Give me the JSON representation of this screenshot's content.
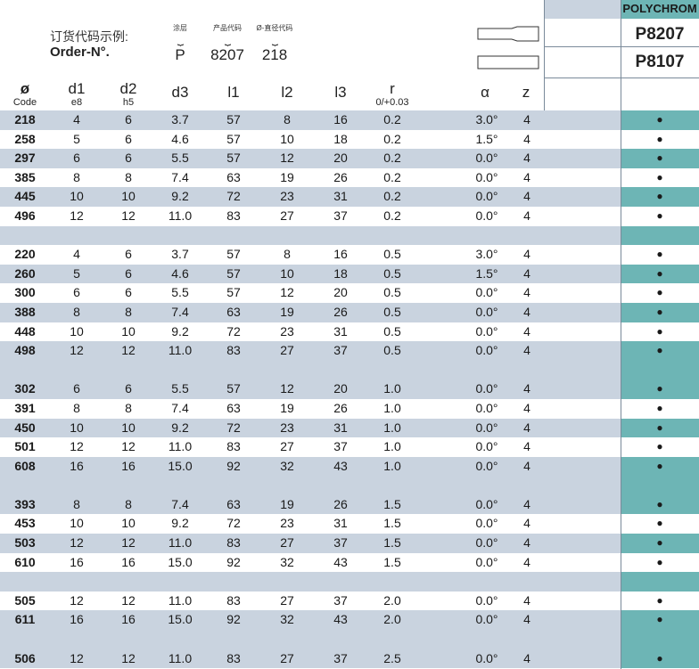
{
  "header": {
    "order_example_cn": "订货代码示例:",
    "order_example_en": "Order-N°.",
    "parts": [
      {
        "label": "涂层",
        "value": "P"
      },
      {
        "label": "产品代码",
        "value": "8207"
      },
      {
        "label": "Ø-直径代码",
        "value": "218"
      }
    ],
    "coating_title": "POLYCHROM",
    "product_codes": [
      "P8207",
      "P8107"
    ]
  },
  "columns": {
    "code": {
      "main": "ø",
      "sub": "Code"
    },
    "d1": {
      "main": "d1",
      "sub": "e8"
    },
    "d2": {
      "main": "d2",
      "sub": "h5"
    },
    "d3": {
      "main": "d3",
      "sub": ""
    },
    "l1": {
      "main": "l1",
      "sub": ""
    },
    "l2": {
      "main": "l2",
      "sub": ""
    },
    "l3": {
      "main": "l3",
      "sub": ""
    },
    "r": {
      "main": "r",
      "sub": "0/+0.03"
    },
    "alpha": {
      "main": "α",
      "sub": ""
    },
    "z": {
      "main": "z",
      "sub": ""
    }
  },
  "rows": [
    {
      "code": "218",
      "d1": "4",
      "d2": "6",
      "d3": "3.7",
      "l1": "57",
      "l2": "8",
      "l3": "16",
      "r": "0.2",
      "alpha": "3.0°",
      "z": "4",
      "p": "●"
    },
    {
      "code": "258",
      "d1": "5",
      "d2": "6",
      "d3": "4.6",
      "l1": "57",
      "l2": "10",
      "l3": "18",
      "r": "0.2",
      "alpha": "1.5°",
      "z": "4",
      "p": "●"
    },
    {
      "code": "297",
      "d1": "6",
      "d2": "6",
      "d3": "5.5",
      "l1": "57",
      "l2": "12",
      "l3": "20",
      "r": "0.2",
      "alpha": "0.0°",
      "z": "4",
      "p": "●"
    },
    {
      "code": "385",
      "d1": "8",
      "d2": "8",
      "d3": "7.4",
      "l1": "63",
      "l2": "19",
      "l3": "26",
      "r": "0.2",
      "alpha": "0.0°",
      "z": "4",
      "p": "●"
    },
    {
      "code": "445",
      "d1": "10",
      "d2": "10",
      "d3": "9.2",
      "l1": "72",
      "l2": "23",
      "l3": "31",
      "r": "0.2",
      "alpha": "0.0°",
      "z": "4",
      "p": "●"
    },
    {
      "code": "496",
      "d1": "12",
      "d2": "12",
      "d3": "11.0",
      "l1": "83",
      "l2": "27",
      "l3": "37",
      "r": "0.2",
      "alpha": "0.0°",
      "z": "4",
      "p": "●"
    },
    {
      "blank": true
    },
    {
      "code": "220",
      "d1": "4",
      "d2": "6",
      "d3": "3.7",
      "l1": "57",
      "l2": "8",
      "l3": "16",
      "r": "0.5",
      "alpha": "3.0°",
      "z": "4",
      "p": "●"
    },
    {
      "code": "260",
      "d1": "5",
      "d2": "6",
      "d3": "4.6",
      "l1": "57",
      "l2": "10",
      "l3": "18",
      "r": "0.5",
      "alpha": "1.5°",
      "z": "4",
      "p": "●"
    },
    {
      "code": "300",
      "d1": "6",
      "d2": "6",
      "d3": "5.5",
      "l1": "57",
      "l2": "12",
      "l3": "20",
      "r": "0.5",
      "alpha": "0.0°",
      "z": "4",
      "p": "●"
    },
    {
      "code": "388",
      "d1": "8",
      "d2": "8",
      "d3": "7.4",
      "l1": "63",
      "l2": "19",
      "l3": "26",
      "r": "0.5",
      "alpha": "0.0°",
      "z": "4",
      "p": "●"
    },
    {
      "code": "448",
      "d1": "10",
      "d2": "10",
      "d3": "9.2",
      "l1": "72",
      "l2": "23",
      "l3": "31",
      "r": "0.5",
      "alpha": "0.0°",
      "z": "4",
      "p": "●"
    },
    {
      "code": "498",
      "d1": "12",
      "d2": "12",
      "d3": "11.0",
      "l1": "83",
      "l2": "27",
      "l3": "37",
      "r": "0.5",
      "alpha": "0.0°",
      "z": "4",
      "p": "●"
    },
    {
      "blank": true
    },
    {
      "code": "302",
      "d1": "6",
      "d2": "6",
      "d3": "5.5",
      "l1": "57",
      "l2": "12",
      "l3": "20",
      "r": "1.0",
      "alpha": "0.0°",
      "z": "4",
      "p": "●"
    },
    {
      "code": "391",
      "d1": "8",
      "d2": "8",
      "d3": "7.4",
      "l1": "63",
      "l2": "19",
      "l3": "26",
      "r": "1.0",
      "alpha": "0.0°",
      "z": "4",
      "p": "●"
    },
    {
      "code": "450",
      "d1": "10",
      "d2": "10",
      "d3": "9.2",
      "l1": "72",
      "l2": "23",
      "l3": "31",
      "r": "1.0",
      "alpha": "0.0°",
      "z": "4",
      "p": "●"
    },
    {
      "code": "501",
      "d1": "12",
      "d2": "12",
      "d3": "11.0",
      "l1": "83",
      "l2": "27",
      "l3": "37",
      "r": "1.0",
      "alpha": "0.0°",
      "z": "4",
      "p": "●"
    },
    {
      "code": "608",
      "d1": "16",
      "d2": "16",
      "d3": "15.0",
      "l1": "92",
      "l2": "32",
      "l3": "43",
      "r": "1.0",
      "alpha": "0.0°",
      "z": "4",
      "p": "●"
    },
    {
      "blank": true
    },
    {
      "code": "393",
      "d1": "8",
      "d2": "8",
      "d3": "7.4",
      "l1": "63",
      "l2": "19",
      "l3": "26",
      "r": "1.5",
      "alpha": "0.0°",
      "z": "4",
      "p": "●"
    },
    {
      "code": "453",
      "d1": "10",
      "d2": "10",
      "d3": "9.2",
      "l1": "72",
      "l2": "23",
      "l3": "31",
      "r": "1.5",
      "alpha": "0.0°",
      "z": "4",
      "p": "●"
    },
    {
      "code": "503",
      "d1": "12",
      "d2": "12",
      "d3": "11.0",
      "l1": "83",
      "l2": "27",
      "l3": "37",
      "r": "1.5",
      "alpha": "0.0°",
      "z": "4",
      "p": "●"
    },
    {
      "code": "610",
      "d1": "16",
      "d2": "16",
      "d3": "15.0",
      "l1": "92",
      "l2": "32",
      "l3": "43",
      "r": "1.5",
      "alpha": "0.0°",
      "z": "4",
      "p": "●"
    },
    {
      "blank": true
    },
    {
      "code": "505",
      "d1": "12",
      "d2": "12",
      "d3": "11.0",
      "l1": "83",
      "l2": "27",
      "l3": "37",
      "r": "2.0",
      "alpha": "0.0°",
      "z": "4",
      "p": "●"
    },
    {
      "code": "611",
      "d1": "16",
      "d2": "16",
      "d3": "15.0",
      "l1": "92",
      "l2": "32",
      "l3": "43",
      "r": "2.0",
      "alpha": "0.0°",
      "z": "4",
      "p": "●"
    },
    {
      "blank": true
    },
    {
      "code": "506",
      "d1": "12",
      "d2": "12",
      "d3": "11.0",
      "l1": "83",
      "l2": "27",
      "l3": "37",
      "r": "2.5",
      "alpha": "0.0°",
      "z": "4",
      "p": "●"
    }
  ],
  "colors": {
    "row_shade": "#c9d3df",
    "coating_col": "#6db5b5"
  }
}
